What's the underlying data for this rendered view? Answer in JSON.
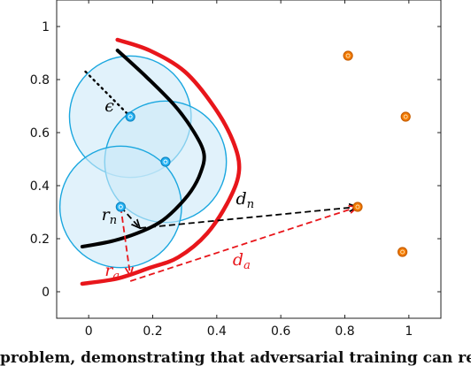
{
  "chart_data": {
    "type": "scatter",
    "title": "",
    "xlabel": "",
    "ylabel": "",
    "xlim": [
      -0.1,
      1.1
    ],
    "ylim": [
      -0.1,
      1.1
    ],
    "x_ticks": [
      0,
      0.2,
      0.4,
      0.6,
      0.8,
      1
    ],
    "y_ticks": [
      0,
      0.2,
      0.4,
      0.6,
      0.8,
      1
    ],
    "x_tick_labels": [
      "0",
      "0.2",
      "0.4",
      "0.6",
      "0.8",
      "1"
    ],
    "y_tick_labels": [
      "0",
      "0.2",
      "0.4",
      "0.6",
      "0.8",
      "1"
    ],
    "grid": false,
    "colors": {
      "class_a_points": "#29b6f6",
      "class_b_points": "#f57c00",
      "epsilon_balls_fill": "#cdeaf8",
      "epsilon_balls_stroke": "#1aa7df",
      "boundary_adversarial": "#e8161b",
      "boundary_natural": "#000000",
      "margin_adversarial": "#e8161b",
      "margin_natural": "#000000"
    },
    "points_blue": [
      {
        "x": 0.13,
        "y": 0.66
      },
      {
        "x": 0.24,
        "y": 0.49
      },
      {
        "x": 0.1,
        "y": 0.32
      }
    ],
    "points_orange": [
      {
        "x": 0.81,
        "y": 0.89
      },
      {
        "x": 0.99,
        "y": 0.66
      },
      {
        "x": 0.84,
        "y": 0.32
      },
      {
        "x": 0.98,
        "y": 0.15
      }
    ],
    "epsilon_radius": 0.19,
    "curve_black": [
      [
        0.09,
        0.91
      ],
      [
        0.18,
        0.81
      ],
      [
        0.27,
        0.7
      ],
      [
        0.33,
        0.6
      ],
      [
        0.36,
        0.52
      ],
      [
        0.35,
        0.45
      ],
      [
        0.32,
        0.38
      ],
      [
        0.27,
        0.31
      ],
      [
        0.22,
        0.26
      ],
      [
        0.15,
        0.22
      ],
      [
        0.07,
        0.19
      ],
      [
        -0.02,
        0.17
      ]
    ],
    "curve_red": [
      [
        0.09,
        0.95
      ],
      [
        0.19,
        0.91
      ],
      [
        0.3,
        0.83
      ],
      [
        0.39,
        0.7
      ],
      [
        0.45,
        0.57
      ],
      [
        0.47,
        0.46
      ],
      [
        0.44,
        0.35
      ],
      [
        0.37,
        0.22
      ],
      [
        0.28,
        0.13
      ],
      [
        0.19,
        0.09
      ],
      [
        0.09,
        0.05
      ],
      [
        -0.02,
        0.03
      ]
    ],
    "segments": [
      {
        "kind": "epsilon",
        "from": [
          -0.01,
          0.83
        ],
        "to": [
          0.13,
          0.66
        ],
        "color": "#000000",
        "dash": "dotted"
      },
      {
        "kind": "r_n",
        "from": [
          0.1,
          0.32
        ],
        "to": [
          0.16,
          0.24
        ],
        "color": "#000000",
        "dash": "dashed"
      },
      {
        "kind": "d_n",
        "from": [
          0.16,
          0.24
        ],
        "to": [
          0.84,
          0.32
        ],
        "color": "#000000",
        "dash": "dashed"
      },
      {
        "kind": "r_a",
        "from": [
          0.1,
          0.32
        ],
        "to": [
          0.13,
          0.06
        ],
        "color": "#e8161b",
        "dash": "dashed"
      },
      {
        "kind": "d_a",
        "from": [
          0.13,
          0.04
        ],
        "to": [
          0.84,
          0.32
        ],
        "color": "#e8161b",
        "dash": "dashed"
      }
    ],
    "annotations": [
      {
        "name": "epsilon",
        "text": "ϵ",
        "sub": "",
        "x": 0.05,
        "y": 0.68,
        "color": "#000000"
      },
      {
        "name": "r-n",
        "text": "r",
        "sub": "n",
        "x": 0.04,
        "y": 0.27,
        "color": "#000000"
      },
      {
        "name": "d-n",
        "text": "d",
        "sub": "n",
        "x": 0.46,
        "y": 0.33,
        "color": "#000000"
      },
      {
        "name": "r-a",
        "text": "r",
        "sub": "a",
        "x": 0.05,
        "y": 0.06,
        "color": "#e8161b"
      },
      {
        "name": "d-a",
        "text": "d",
        "sub": "a",
        "x": 0.45,
        "y": 0.1,
        "color": "#e8161b"
      }
    ]
  },
  "caption_fragment": "problem, demonstrating that adversarial training can re"
}
